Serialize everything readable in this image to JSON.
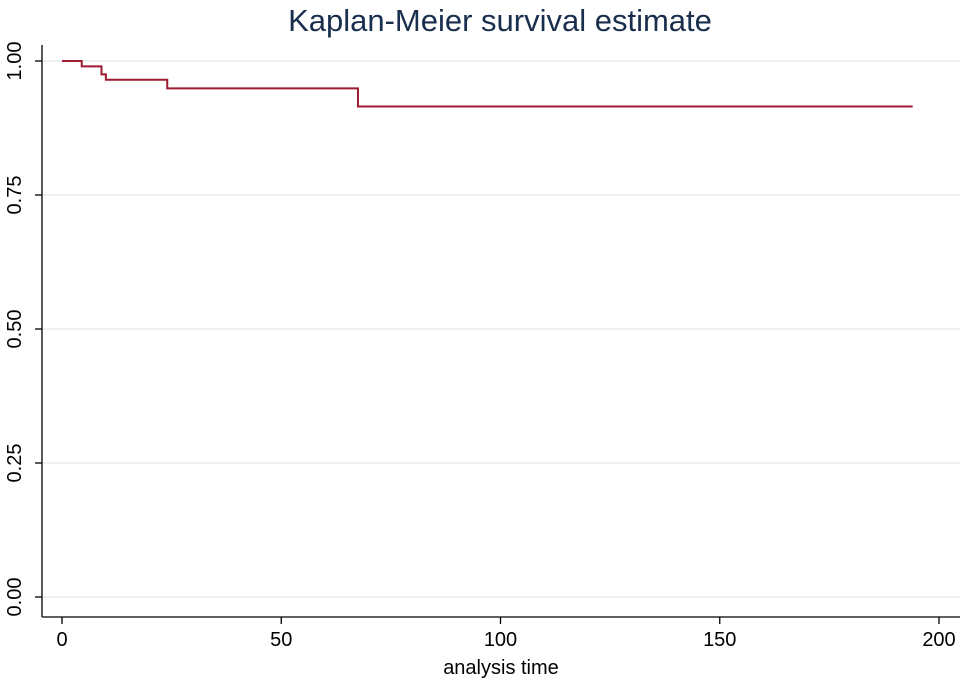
{
  "chart_data": {
    "type": "line",
    "step": true,
    "title": "Kaplan-Meier survival estimate",
    "xlabel": "analysis time",
    "ylabel": "",
    "xlim": [
      0,
      200
    ],
    "ylim": [
      0,
      1
    ],
    "x_ticks": [
      0,
      50,
      100,
      150,
      200
    ],
    "x_tick_labels": [
      "0",
      "50",
      "100",
      "150",
      "200"
    ],
    "y_ticks": [
      0,
      0.25,
      0.5,
      0.75,
      1
    ],
    "y_tick_labels": [
      "0.00",
      "0.25",
      "0.50",
      "0.75",
      "1.00"
    ],
    "grid": true,
    "legend": "none",
    "series": [
      {
        "color": "#9e1b32",
        "points": [
          {
            "x": 0,
            "y": 1.0
          },
          {
            "x": 4.5,
            "y": 0.99
          },
          {
            "x": 9,
            "y": 0.975
          },
          {
            "x": 10,
            "y": 0.965
          },
          {
            "x": 24,
            "y": 0.949
          },
          {
            "x": 67.5,
            "y": 0.915
          },
          {
            "x": 194,
            "y": 0.915
          }
        ]
      }
    ],
    "colors": {
      "line": "#9e1b32",
      "grid": "#e6eef0",
      "axis": "#000000",
      "title": "#1a2f4d"
    }
  }
}
